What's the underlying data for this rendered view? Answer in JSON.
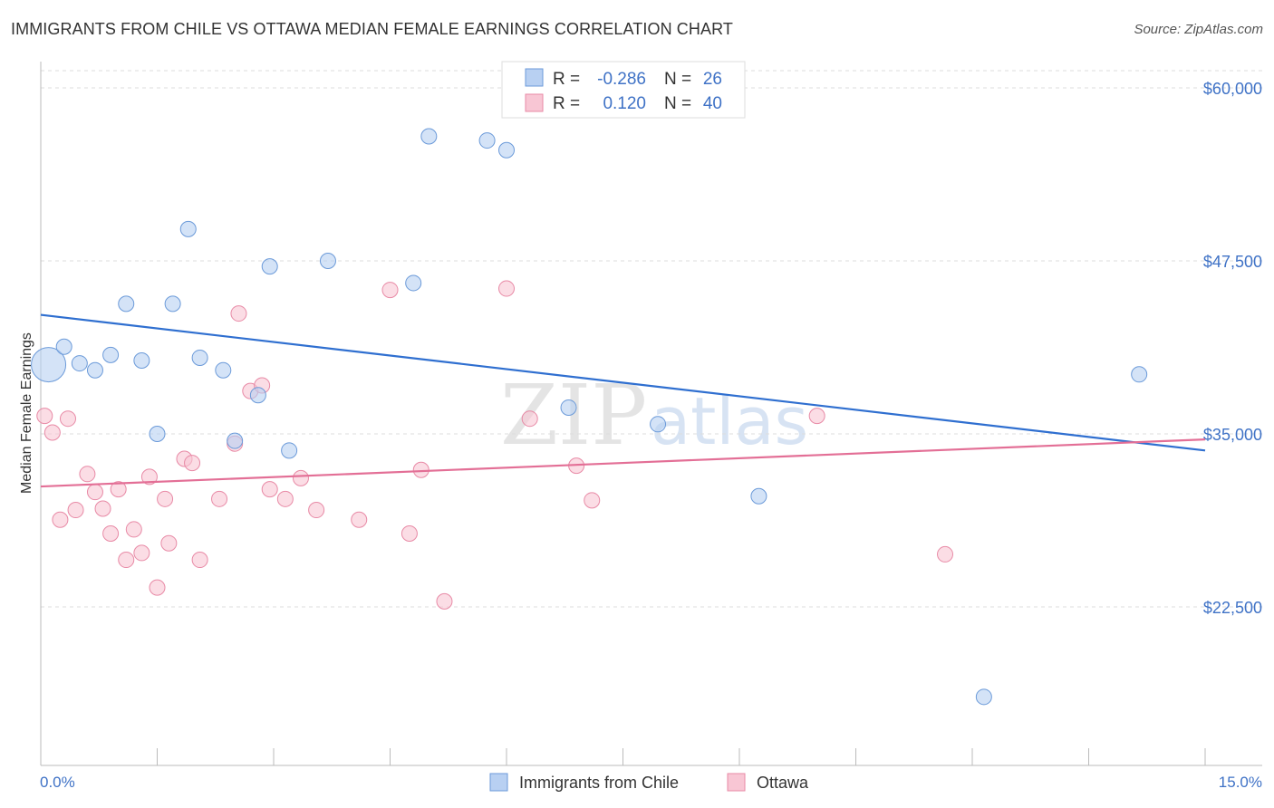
{
  "title": "IMMIGRANTS FROM CHILE VS OTTAWA MEDIAN FEMALE EARNINGS CORRELATION CHART",
  "source": "Source: ZipAtlas.com",
  "watermark": {
    "zip": "ZIP",
    "atlas": "atlas"
  },
  "colors": {
    "blue_fill": "#b8d0f2",
    "blue_stroke": "#6b9ad9",
    "blue_line": "#2f6fd0",
    "pink_fill": "#f8c6d4",
    "pink_stroke": "#e88aa6",
    "pink_line": "#e36f96",
    "tick_text": "#3f72c6",
    "grid": "#dddddd"
  },
  "legend_stats": [
    {
      "r_label": "R =",
      "r_value": "-0.286",
      "n_label": "N =",
      "n_value": "26",
      "series": "blue"
    },
    {
      "r_label": "R =",
      "r_value": "0.120",
      "n_label": "N =",
      "n_value": "40",
      "series": "pink"
    }
  ],
  "chart_data": {
    "type": "scatter",
    "title": "IMMIGRANTS FROM CHILE VS OTTAWA MEDIAN FEMALE EARNINGS CORRELATION CHART",
    "xlabel": "",
    "ylabel": "Median Female Earnings",
    "xlim": [
      0,
      15
    ],
    "ylim": [
      12500,
      62500
    ],
    "x_tick_labels": [
      {
        "value": 0,
        "label": "0.0%"
      },
      {
        "value": 15,
        "label": "15.0%"
      }
    ],
    "y_ticks": [
      {
        "value": 60000,
        "label": "$60,000"
      },
      {
        "value": 47500,
        "label": "$47,500"
      },
      {
        "value": 35000,
        "label": "$35,000"
      },
      {
        "value": 22500,
        "label": "$22,500"
      }
    ],
    "legend": [
      "Immigrants from Chile",
      "Ottawa"
    ],
    "series": [
      {
        "name": "Immigrants from Chile",
        "color": "blue",
        "trend": {
          "x0": 0,
          "y0": 43600,
          "x1": 15,
          "y1": 33800
        },
        "points": [
          [
            0.1,
            40000,
            1
          ],
          [
            0.3,
            41300,
            0
          ],
          [
            0.5,
            40100,
            0
          ],
          [
            0.7,
            39600,
            0
          ],
          [
            0.9,
            40700,
            0
          ],
          [
            1.1,
            44400,
            0
          ],
          [
            1.3,
            40300,
            0
          ],
          [
            1.5,
            35000,
            0
          ],
          [
            1.7,
            44400,
            0
          ],
          [
            1.9,
            49800,
            0
          ],
          [
            2.05,
            40500,
            0
          ],
          [
            2.35,
            39600,
            0
          ],
          [
            2.5,
            34500,
            0
          ],
          [
            2.8,
            37800,
            0
          ],
          [
            2.95,
            47100,
            0
          ],
          [
            3.2,
            33800,
            0
          ],
          [
            3.7,
            47500,
            0
          ],
          [
            4.8,
            45900,
            0
          ],
          [
            5.0,
            56500,
            0
          ],
          [
            5.75,
            56200,
            0
          ],
          [
            6.0,
            55500,
            0
          ],
          [
            6.8,
            36900,
            0
          ],
          [
            7.95,
            35700,
            0
          ],
          [
            9.25,
            30500,
            0
          ],
          [
            12.15,
            16000,
            0
          ],
          [
            14.15,
            39300,
            0
          ]
        ]
      },
      {
        "name": "Ottawa",
        "color": "pink",
        "trend": {
          "x0": 0,
          "y0": 31200,
          "x1": 15,
          "y1": 34600
        },
        "points": [
          [
            0.05,
            36300,
            0
          ],
          [
            0.15,
            35100,
            0
          ],
          [
            0.25,
            28800,
            0
          ],
          [
            0.35,
            36100,
            0
          ],
          [
            0.45,
            29500,
            0
          ],
          [
            0.6,
            32100,
            0
          ],
          [
            0.7,
            30800,
            0
          ],
          [
            0.8,
            29600,
            0
          ],
          [
            0.9,
            27800,
            0
          ],
          [
            1.0,
            31000,
            0
          ],
          [
            1.1,
            25900,
            0
          ],
          [
            1.2,
            28100,
            0
          ],
          [
            1.3,
            26400,
            0
          ],
          [
            1.4,
            31900,
            0
          ],
          [
            1.5,
            23900,
            0
          ],
          [
            1.6,
            30300,
            0
          ],
          [
            1.65,
            27100,
            0
          ],
          [
            1.85,
            33200,
            0
          ],
          [
            1.95,
            32900,
            0
          ],
          [
            2.05,
            25900,
            0
          ],
          [
            2.3,
            30300,
            0
          ],
          [
            2.5,
            34300,
            0
          ],
          [
            2.55,
            43700,
            0
          ],
          [
            2.7,
            38100,
            0
          ],
          [
            2.85,
            38500,
            0
          ],
          [
            2.95,
            31000,
            0
          ],
          [
            3.15,
            30300,
            0
          ],
          [
            3.35,
            31800,
            0
          ],
          [
            3.55,
            29500,
            0
          ],
          [
            4.1,
            28800,
            0
          ],
          [
            4.5,
            45400,
            0
          ],
          [
            4.75,
            27800,
            0
          ],
          [
            4.9,
            32400,
            0
          ],
          [
            5.2,
            22900,
            0
          ],
          [
            6.0,
            45500,
            0
          ],
          [
            6.3,
            36100,
            0
          ],
          [
            6.9,
            32700,
            0
          ],
          [
            7.1,
            30200,
            0
          ],
          [
            10.0,
            36300,
            0
          ],
          [
            11.65,
            26300,
            0
          ]
        ]
      }
    ]
  }
}
